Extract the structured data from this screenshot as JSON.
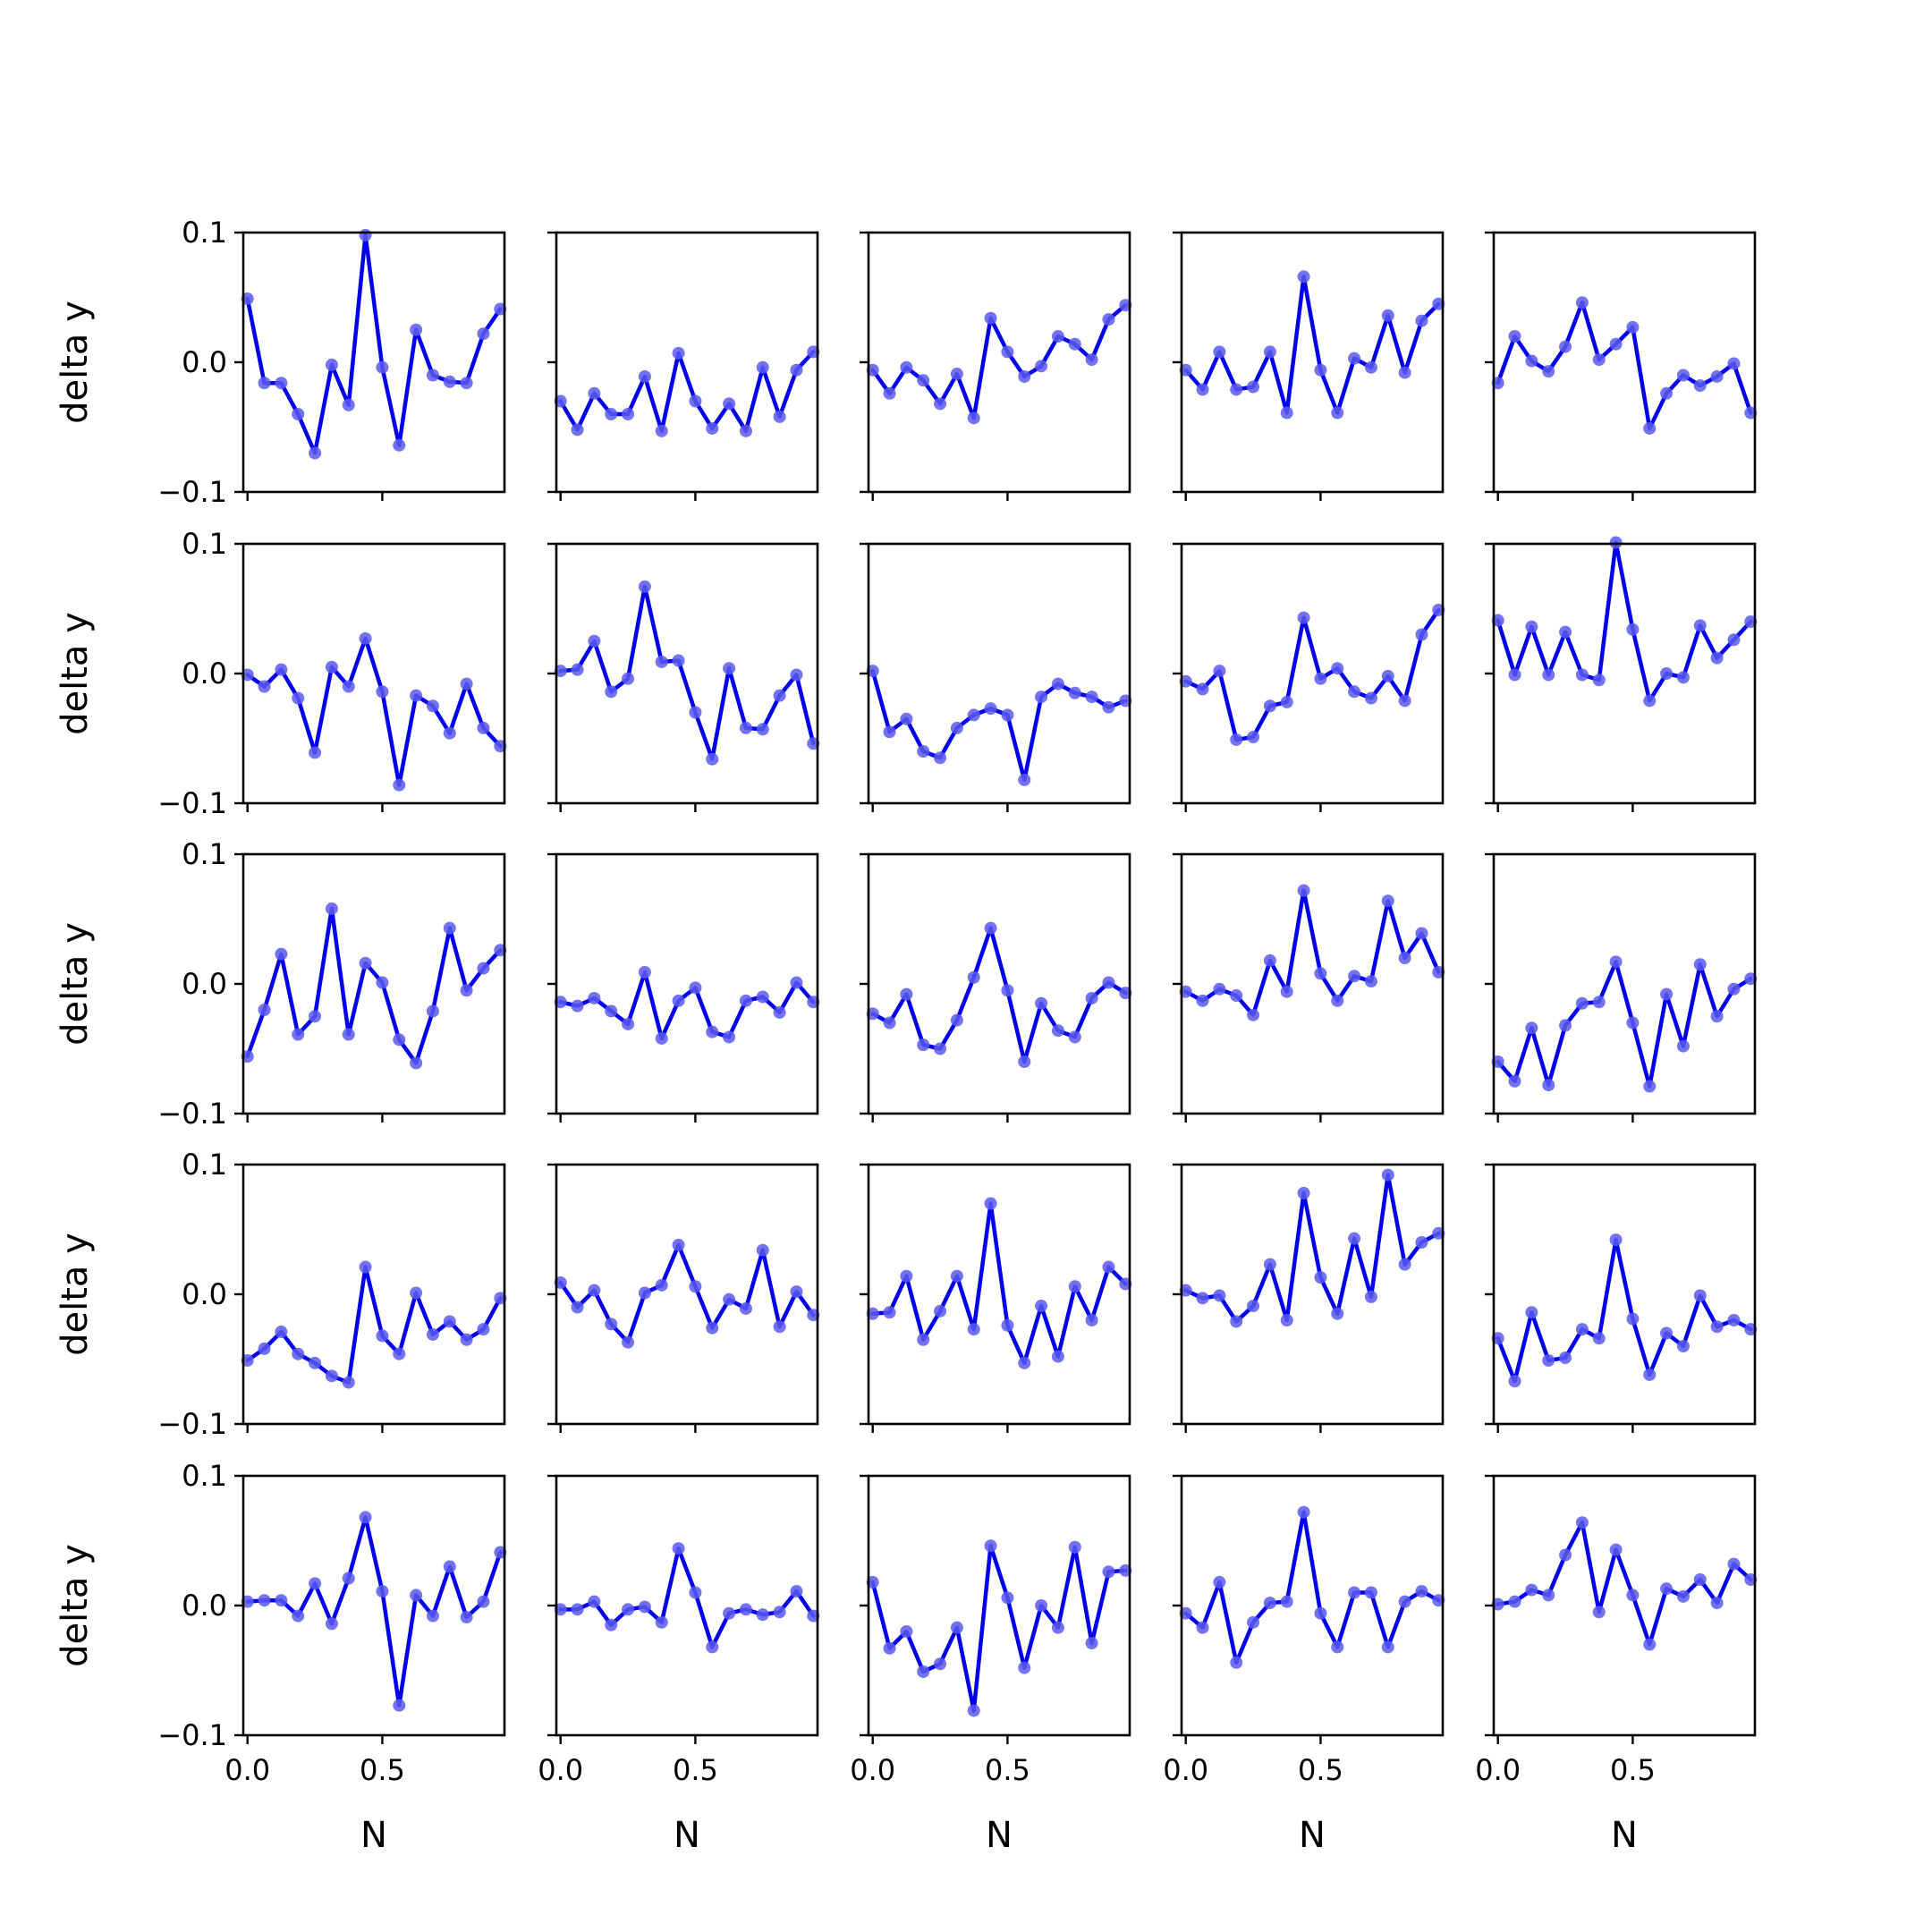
{
  "chart_data": {
    "type": "line",
    "layout": {
      "rows": 5,
      "cols": 5,
      "sharex": true,
      "sharey": true
    },
    "xlabel": "N",
    "ylabel": "delta y",
    "xlim": [
      -0.0156,
      0.9531
    ],
    "ylim": [
      -0.1,
      0.1
    ],
    "xticks": [
      0.0,
      0.5
    ],
    "xtick_labels": [
      "0.0",
      "0.5"
    ],
    "yticks": [
      -0.1,
      0.0,
      0.1
    ],
    "ytick_labels": [
      "−0.1",
      "0.0",
      "0.1"
    ],
    "grid": false,
    "line_color": "#0000ee",
    "marker_color": "#5a5aee",
    "x": [
      0.0,
      0.0625,
      0.125,
      0.1875,
      0.25,
      0.3125,
      0.375,
      0.4375,
      0.5,
      0.5625,
      0.625,
      0.6875,
      0.75,
      0.8125,
      0.875,
      0.9375
    ],
    "panels": [
      {
        "values": [
          0.049,
          -0.016,
          -0.016,
          -0.04,
          -0.07,
          -0.002,
          -0.033,
          0.098,
          -0.004,
          -0.064,
          0.025,
          -0.01,
          -0.015,
          -0.016,
          0.022,
          0.041
        ]
      },
      {
        "values": [
          -0.03,
          -0.052,
          -0.024,
          -0.04,
          -0.04,
          -0.011,
          -0.053,
          0.007,
          -0.03,
          -0.051,
          -0.032,
          -0.053,
          -0.004,
          -0.042,
          -0.006,
          0.008
        ]
      },
      {
        "values": [
          -0.006,
          -0.024,
          -0.004,
          -0.014,
          -0.032,
          -0.009,
          -0.043,
          0.034,
          0.008,
          -0.011,
          -0.003,
          0.02,
          0.014,
          0.002,
          0.033,
          0.044
        ]
      },
      {
        "values": [
          -0.006,
          -0.021,
          0.008,
          -0.021,
          -0.019,
          0.008,
          -0.039,
          0.066,
          -0.006,
          -0.039,
          0.003,
          -0.004,
          0.036,
          -0.008,
          0.032,
          0.045
        ]
      },
      {
        "values": [
          -0.016,
          0.02,
          0.001,
          -0.007,
          0.012,
          0.046,
          0.002,
          0.014,
          0.027,
          -0.051,
          -0.024,
          -0.01,
          -0.018,
          -0.011,
          -0.001,
          -0.039
        ]
      },
      {
        "values": [
          -0.001,
          -0.01,
          0.003,
          -0.019,
          -0.061,
          0.005,
          -0.01,
          0.027,
          -0.014,
          -0.086,
          -0.017,
          -0.025,
          -0.046,
          -0.008,
          -0.042,
          -0.056
        ]
      },
      {
        "values": [
          0.002,
          0.003,
          0.025,
          -0.014,
          -0.004,
          0.067,
          0.009,
          0.01,
          -0.03,
          -0.066,
          0.004,
          -0.042,
          -0.043,
          -0.017,
          -0.001,
          -0.054
        ]
      },
      {
        "values": [
          0.002,
          -0.045,
          -0.035,
          -0.06,
          -0.065,
          -0.042,
          -0.032,
          -0.027,
          -0.032,
          -0.082,
          -0.018,
          -0.008,
          -0.015,
          -0.018,
          -0.026,
          -0.021
        ]
      },
      {
        "values": [
          -0.006,
          -0.012,
          0.002,
          -0.051,
          -0.049,
          -0.025,
          -0.022,
          0.043,
          -0.004,
          0.004,
          -0.014,
          -0.019,
          -0.002,
          -0.021,
          0.03,
          0.049
        ]
      },
      {
        "values": [
          0.041,
          -0.001,
          0.036,
          -0.001,
          0.032,
          -0.001,
          -0.005,
          0.101,
          0.034,
          -0.021,
          0.0,
          -0.003,
          0.037,
          0.012,
          0.026,
          0.04
        ]
      },
      {
        "values": [
          -0.056,
          -0.02,
          0.023,
          -0.039,
          -0.025,
          0.058,
          -0.039,
          0.016,
          0.001,
          -0.043,
          -0.061,
          -0.021,
          0.043,
          -0.005,
          0.012,
          0.026
        ]
      },
      {
        "values": [
          -0.014,
          -0.017,
          -0.011,
          -0.021,
          -0.031,
          0.009,
          -0.042,
          -0.013,
          -0.003,
          -0.037,
          -0.041,
          -0.013,
          -0.01,
          -0.022,
          0.001,
          -0.014
        ]
      },
      {
        "values": [
          -0.023,
          -0.03,
          -0.008,
          -0.047,
          -0.05,
          -0.028,
          0.005,
          0.043,
          -0.005,
          -0.06,
          -0.015,
          -0.036,
          -0.041,
          -0.011,
          0.001,
          -0.007
        ]
      },
      {
        "values": [
          -0.006,
          -0.013,
          -0.004,
          -0.009,
          -0.024,
          0.018,
          -0.006,
          0.072,
          0.008,
          -0.013,
          0.006,
          0.002,
          0.064,
          0.02,
          0.039,
          0.009
        ]
      },
      {
        "values": [
          -0.06,
          -0.075,
          -0.034,
          -0.078,
          -0.032,
          -0.015,
          -0.014,
          0.017,
          -0.03,
          -0.079,
          -0.008,
          -0.048,
          0.015,
          -0.025,
          -0.004,
          0.004
        ]
      },
      {
        "values": [
          -0.051,
          -0.042,
          -0.029,
          -0.046,
          -0.053,
          -0.063,
          -0.068,
          0.021,
          -0.032,
          -0.046,
          0.001,
          -0.031,
          -0.021,
          -0.035,
          -0.027,
          -0.003
        ]
      },
      {
        "values": [
          0.009,
          -0.01,
          0.003,
          -0.023,
          -0.037,
          0.001,
          0.007,
          0.038,
          0.006,
          -0.026,
          -0.004,
          -0.011,
          0.034,
          -0.025,
          0.002,
          -0.016
        ]
      },
      {
        "values": [
          -0.015,
          -0.014,
          0.014,
          -0.035,
          -0.013,
          0.014,
          -0.027,
          0.07,
          -0.024,
          -0.053,
          -0.009,
          -0.048,
          0.006,
          -0.02,
          0.021,
          0.008
        ]
      },
      {
        "values": [
          0.003,
          -0.003,
          -0.001,
          -0.021,
          -0.009,
          0.023,
          -0.02,
          0.078,
          0.013,
          -0.015,
          0.043,
          -0.002,
          0.092,
          0.023,
          0.04,
          0.047
        ]
      },
      {
        "values": [
          -0.034,
          -0.067,
          -0.014,
          -0.051,
          -0.049,
          -0.027,
          -0.034,
          0.042,
          -0.019,
          -0.062,
          -0.03,
          -0.04,
          -0.001,
          -0.025,
          -0.02,
          -0.027
        ]
      },
      {
        "values": [
          0.003,
          0.004,
          0.004,
          -0.008,
          0.017,
          -0.014,
          0.021,
          0.068,
          0.011,
          -0.077,
          0.008,
          -0.008,
          0.03,
          -0.009,
          0.003,
          0.041
        ]
      },
      {
        "values": [
          -0.003,
          -0.003,
          0.003,
          -0.015,
          -0.003,
          -0.001,
          -0.013,
          0.044,
          0.01,
          -0.032,
          -0.006,
          -0.003,
          -0.007,
          -0.005,
          0.011,
          -0.008
        ]
      },
      {
        "values": [
          0.018,
          -0.033,
          -0.02,
          -0.051,
          -0.045,
          -0.017,
          -0.081,
          0.046,
          0.006,
          -0.048,
          0.0,
          -0.017,
          0.045,
          -0.029,
          0.026,
          0.027
        ]
      },
      {
        "values": [
          -0.006,
          -0.017,
          0.018,
          -0.044,
          -0.013,
          0.002,
          0.003,
          0.072,
          -0.006,
          -0.032,
          0.01,
          0.01,
          -0.032,
          0.003,
          0.011,
          0.004
        ]
      },
      {
        "values": [
          0.001,
          0.003,
          0.012,
          0.008,
          0.039,
          0.064,
          -0.005,
          0.043,
          0.008,
          -0.03,
          0.013,
          0.007,
          0.02,
          0.002,
          0.032,
          0.02
        ]
      }
    ]
  }
}
